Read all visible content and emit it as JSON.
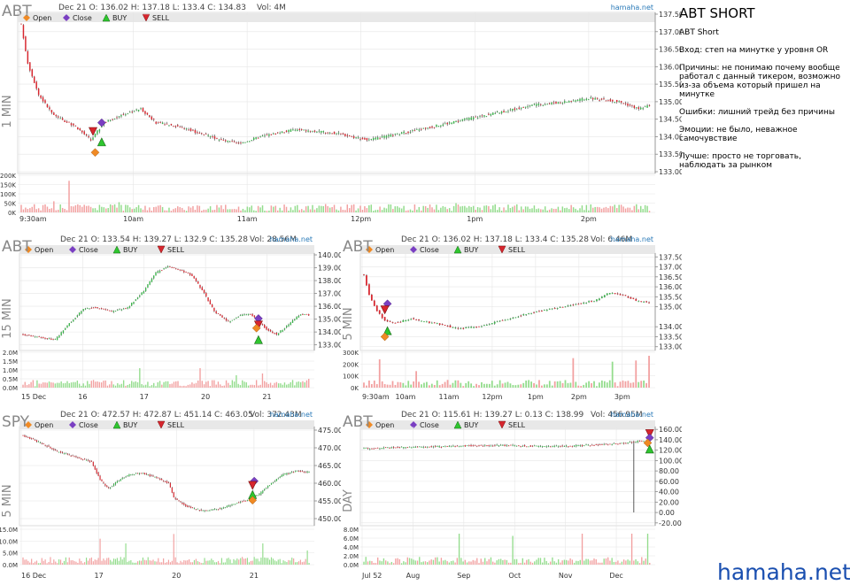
{
  "notes": {
    "title": "ABT SHORT",
    "lines": [
      "ABT Short",
      "Вход: степ на минутке у уровня OR",
      "Причины: не понимаю почему вообще работал с данный тикером, возможно из-за объема который пришел на минутке",
      "Ошибки: лишний трейд без причины",
      "Эмоции: не было, неважное самочувствие",
      "Лучше: просто не торговать, наблюдать за рынком"
    ]
  },
  "watermark": "hamaha.net",
  "legend": {
    "open": "Open",
    "close": "Close",
    "buy": "BUY",
    "sell": "SELL"
  },
  "colors": {
    "up": "#39b54a",
    "down": "#d7262e",
    "vol_up": "#93dc8c",
    "vol_down": "#f2a0a0",
    "open": "#f08a24",
    "close": "#7a3fc2",
    "buy": "#2fc62f",
    "sell": "#d7262e",
    "grid": "#e6e6e6",
    "source": "#2a7ab8"
  },
  "chart_data": [
    {
      "id": "abt_1min",
      "type": "candlestick",
      "symbol": "ABT",
      "timeframe": "1 MIN",
      "info": "Dec 21 O: 136.02 H: 137.18 L: 133.4 C: 134.83",
      "vol_info": "Vol: 4M",
      "source": "hamaha.net",
      "y_ticks": [
        "137.50",
        "137.00",
        "136.50",
        "136.00",
        "135.50",
        "135.00",
        "134.50",
        "134.00",
        "133.50",
        "133.00"
      ],
      "y_range": [
        133.0,
        137.5
      ],
      "vol_ticks": [
        "200K",
        "150K",
        "100K",
        "50K",
        "0K"
      ],
      "vol_max": 200000,
      "x_ticks": [
        "9:30am",
        "10am",
        "11am",
        "12pm",
        "1pm",
        "2pm"
      ],
      "path": [
        [
          0,
          137.2
        ],
        [
          3,
          136.1
        ],
        [
          8,
          135.2
        ],
        [
          15,
          134.6
        ],
        [
          25,
          134.3
        ],
        [
          32,
          133.9
        ],
        [
          38,
          134.4
        ],
        [
          45,
          134.6
        ],
        [
          55,
          134.8
        ],
        [
          62,
          134.4
        ],
        [
          72,
          134.3
        ],
        [
          82,
          134.1
        ],
        [
          92,
          133.9
        ],
        [
          100,
          133.8
        ],
        [
          110,
          134.0
        ],
        [
          125,
          134.2
        ],
        [
          145,
          134.1
        ],
        [
          160,
          133.9
        ],
        [
          175,
          134.1
        ],
        [
          190,
          134.3
        ],
        [
          205,
          134.5
        ],
        [
          220,
          134.7
        ],
        [
          235,
          134.9
        ],
        [
          250,
          135.0
        ],
        [
          262,
          135.1
        ],
        [
          275,
          135.0
        ],
        [
          284,
          134.8
        ],
        [
          290,
          134.9
        ]
      ],
      "n": 290,
      "vol_spikes": [
        [
          22,
          170000
        ],
        [
          15,
          60000
        ],
        [
          45,
          55000
        ],
        [
          90,
          40000
        ],
        [
          140,
          45000
        ],
        [
          200,
          50000
        ],
        [
          260,
          40000
        ],
        [
          288,
          35000
        ]
      ],
      "markers": [
        {
          "type": "sell",
          "x": 33,
          "y": 134.15
        },
        {
          "type": "close",
          "x": 37,
          "y": 134.4
        },
        {
          "type": "buy",
          "x": 37,
          "y": 133.85
        },
        {
          "type": "open",
          "x": 34,
          "y": 133.55
        }
      ]
    },
    {
      "id": "abt_15min",
      "type": "candlestick",
      "symbol": "ABT",
      "timeframe": "15 MIN",
      "info": "Dec 21 O: 133.54 H: 139.27 L: 132.9 C: 135.28",
      "vol_info": "Vol: 28.56M",
      "source": "hamaha.net",
      "y_ticks": [
        "140.00",
        "139.00",
        "138.00",
        "137.00",
        "136.00",
        "135.00",
        "134.00",
        "133.00"
      ],
      "y_range": [
        132.7,
        140.0
      ],
      "vol_ticks": [
        "2.0M",
        "1.5M",
        "1.0M",
        "0.5M",
        "0.0M"
      ],
      "vol_max": 2000000,
      "x_ticks": [
        "15 Dec",
        "16",
        "17",
        "20",
        "21"
      ],
      "path": [
        [
          0,
          133.8
        ],
        [
          8,
          133.6
        ],
        [
          16,
          133.4
        ],
        [
          22,
          134.5
        ],
        [
          30,
          135.8
        ],
        [
          36,
          135.9
        ],
        [
          44,
          135.6
        ],
        [
          52,
          135.9
        ],
        [
          60,
          137.2
        ],
        [
          66,
          138.6
        ],
        [
          72,
          139.1
        ],
        [
          78,
          138.8
        ],
        [
          84,
          138.4
        ],
        [
          90,
          137.0
        ],
        [
          95,
          135.6
        ],
        [
          102,
          134.8
        ],
        [
          108,
          135.3
        ],
        [
          113,
          135.4
        ],
        [
          118,
          134.7
        ],
        [
          121,
          134.2
        ],
        [
          126,
          133.8
        ],
        [
          132,
          134.6
        ],
        [
          138,
          135.4
        ],
        [
          143,
          135.3
        ]
      ],
      "n": 143,
      "vol_spikes": [
        [
          58,
          1100000
        ],
        [
          88,
          1100000
        ],
        [
          106,
          700000
        ],
        [
          119,
          800000
        ],
        [
          142,
          500000
        ]
      ],
      "markers": [
        {
          "type": "close",
          "x": 117,
          "y": 135.05
        },
        {
          "type": "sell",
          "x": 117,
          "y": 134.55
        },
        {
          "type": "open",
          "x": 116,
          "y": 134.3
        },
        {
          "type": "buy",
          "x": 117,
          "y": 133.4
        }
      ]
    },
    {
      "id": "abt_5min",
      "type": "candlestick",
      "symbol": "ABT",
      "timeframe": "5 MIN",
      "info": "Dec 21 O: 136.02 H: 137.18 L: 133.4 C: 135.28",
      "vol_info": "Vol: 6.46M",
      "source": "hamaha.net",
      "y_ticks": [
        "137.50",
        "137.00",
        "136.50",
        "136.00",
        "135.50",
        "135.00",
        "134.00",
        "133.50",
        "133.00"
      ],
      "y_range": [
        132.9,
        137.6
      ],
      "vol_ticks": [
        "300K",
        "200K",
        "100K",
        "0K"
      ],
      "vol_max": 300000,
      "x_ticks": [
        "9:30am",
        "10am",
        "11am",
        "12pm",
        "1pm",
        "2pm",
        "3pm"
      ],
      "path": [
        [
          0,
          136.6
        ],
        [
          2,
          135.6
        ],
        [
          5,
          134.8
        ],
        [
          8,
          134.3
        ],
        [
          12,
          134.2
        ],
        [
          18,
          134.4
        ],
        [
          25,
          134.2
        ],
        [
          30,
          134.1
        ],
        [
          36,
          133.9
        ],
        [
          44,
          134.0
        ],
        [
          52,
          134.3
        ],
        [
          58,
          134.5
        ],
        [
          64,
          134.7
        ],
        [
          72,
          134.9
        ],
        [
          80,
          135.1
        ],
        [
          88,
          135.3
        ],
        [
          94,
          135.7
        ],
        [
          99,
          135.6
        ],
        [
          104,
          135.3
        ],
        [
          110,
          135.2
        ]
      ],
      "n": 110,
      "vol_spikes": [
        [
          6,
          240000
        ],
        [
          20,
          140000
        ],
        [
          80,
          250000
        ],
        [
          95,
          220000
        ],
        [
          104,
          230000
        ],
        [
          109,
          270000
        ]
      ],
      "markers": [
        {
          "type": "close",
          "x": 9,
          "y": 135.15
        },
        {
          "type": "sell",
          "x": 8,
          "y": 134.85
        },
        {
          "type": "buy",
          "x": 9,
          "y": 133.8
        },
        {
          "type": "open",
          "x": 8,
          "y": 133.5
        }
      ]
    },
    {
      "id": "spy_5min",
      "type": "candlestick",
      "symbol": "SPY",
      "timeframe": "5 MIN",
      "info": "Dec 21 O: 472.57 H: 472.87 L: 451.14 C: 463.05",
      "vol_info": "Vol: 372.43M",
      "source": "hamaha.net",
      "y_ticks": [
        "475.00",
        "470.00",
        "465.00",
        "460.00",
        "455.00",
        "450.00"
      ],
      "y_range": [
        448.5,
        475.5
      ],
      "vol_ticks": [
        "15.0M",
        "10.0M",
        "5.0M",
        "0.0M"
      ],
      "vol_max": 15000000,
      "x_ticks": [
        "16 Dec",
        "17",
        "20",
        "21"
      ],
      "path": [
        [
          0,
          473.5
        ],
        [
          10,
          471.5
        ],
        [
          20,
          469.0
        ],
        [
          30,
          467.5
        ],
        [
          40,
          466.0
        ],
        [
          45,
          461.0
        ],
        [
          50,
          458.5
        ],
        [
          55,
          460.5
        ],
        [
          62,
          462.5
        ],
        [
          70,
          462.8
        ],
        [
          78,
          461.5
        ],
        [
          85,
          460.0
        ],
        [
          88,
          456.0
        ],
        [
          95,
          453.5
        ],
        [
          105,
          452.2
        ],
        [
          115,
          452.8
        ],
        [
          125,
          454.5
        ],
        [
          132,
          455.5
        ],
        [
          138,
          457.0
        ],
        [
          145,
          460.0
        ],
        [
          152,
          462.5
        ],
        [
          160,
          463.5
        ],
        [
          168,
          463.0
        ]
      ],
      "n": 168,
      "vol_spikes": [
        [
          45,
          11000000
        ],
        [
          60,
          9000000
        ],
        [
          88,
          13000000
        ],
        [
          140,
          9000000
        ],
        [
          166,
          6000000
        ]
      ],
      "markers": [
        {
          "type": "close",
          "x": 135,
          "y": 460.6
        },
        {
          "type": "sell",
          "x": 134,
          "y": 459.4
        },
        {
          "type": "buy",
          "x": 134,
          "y": 456.8
        },
        {
          "type": "open",
          "x": 134,
          "y": 455.2
        }
      ]
    },
    {
      "id": "abt_day",
      "type": "candlestick",
      "symbol": "ABT",
      "timeframe": "DAY",
      "info": "Dec 21 O: 115.61 H: 139.27 L: 0.13 C: 138.99",
      "vol_info": "Vol: 456.95M",
      "source": "hamaha.net",
      "y_ticks": [
        "160.00",
        "140.00",
        "120.00",
        "100.00",
        "80.00",
        "60.00",
        "40.00",
        "20.00",
        "0.00",
        "-20.00"
      ],
      "y_range": [
        -22,
        162
      ],
      "vol_ticks": [
        "8.0M",
        "6.0M",
        "4.0M",
        "2.0M",
        "0.0M"
      ],
      "vol_max": 8000000,
      "x_ticks": [
        "Jul 52",
        "Aug",
        "Sep",
        "Oct",
        "Nov",
        "Dec"
      ],
      "path": [
        [
          0,
          123
        ],
        [
          15,
          125
        ],
        [
          30,
          126
        ],
        [
          45,
          128
        ],
        [
          60,
          129
        ],
        [
          75,
          129
        ],
        [
          90,
          127
        ],
        [
          105,
          128
        ],
        [
          120,
          131
        ],
        [
          130,
          133
        ],
        [
          138,
          137
        ],
        [
          145,
          139
        ]
      ],
      "n": 145,
      "vol_spikes": [
        [
          48,
          7000000
        ],
        [
          75,
          6500000
        ],
        [
          110,
          7000000
        ],
        [
          135,
          7000000
        ],
        [
          143,
          7000000
        ]
      ],
      "long_wick": {
        "x": 136,
        "low": 0.13
      },
      "markers": [
        {
          "type": "sell",
          "x": 144,
          "y": 152
        },
        {
          "type": "close",
          "x": 144,
          "y": 144
        },
        {
          "type": "buy",
          "x": 144,
          "y": 122
        },
        {
          "type": "open",
          "x": 143,
          "y": 134
        }
      ]
    }
  ]
}
